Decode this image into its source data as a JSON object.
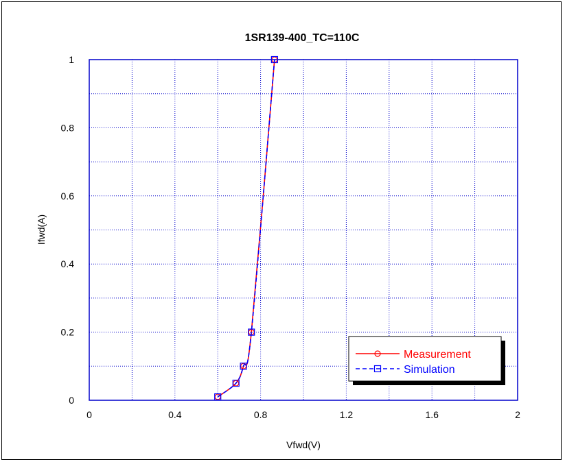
{
  "chart_data": {
    "type": "line",
    "title": "1SR139-400_TC=110C",
    "xlabel": "Vfwd(V)",
    "ylabel": "Ifwd(A)",
    "xlim": [
      0,
      2
    ],
    "ylim": [
      0,
      1
    ],
    "x_ticks": [
      "0",
      "0.4",
      "0.8",
      "1.2",
      "1.6",
      "2"
    ],
    "y_ticks": [
      "0",
      "0.2",
      "0.4",
      "0.6",
      "0.8",
      "1"
    ],
    "grid": true,
    "legend_position": "bottom-right",
    "series": [
      {
        "name": "Measurement",
        "color": "#ff0000",
        "marker": "circle",
        "line": "solid",
        "x": [
          0.6,
          0.685,
          0.72,
          0.757,
          0.865
        ],
        "y": [
          0.01,
          0.05,
          0.1,
          0.2,
          1.0
        ]
      },
      {
        "name": "Simulation",
        "color": "#0000ff",
        "marker": "square",
        "line": "dashed",
        "x": [
          0.6,
          0.685,
          0.72,
          0.757,
          0.865
        ],
        "y": [
          0.01,
          0.05,
          0.1,
          0.2,
          1.0
        ]
      }
    ],
    "colors": {
      "axis": "#0000cc",
      "grid": "#0000cc"
    }
  }
}
